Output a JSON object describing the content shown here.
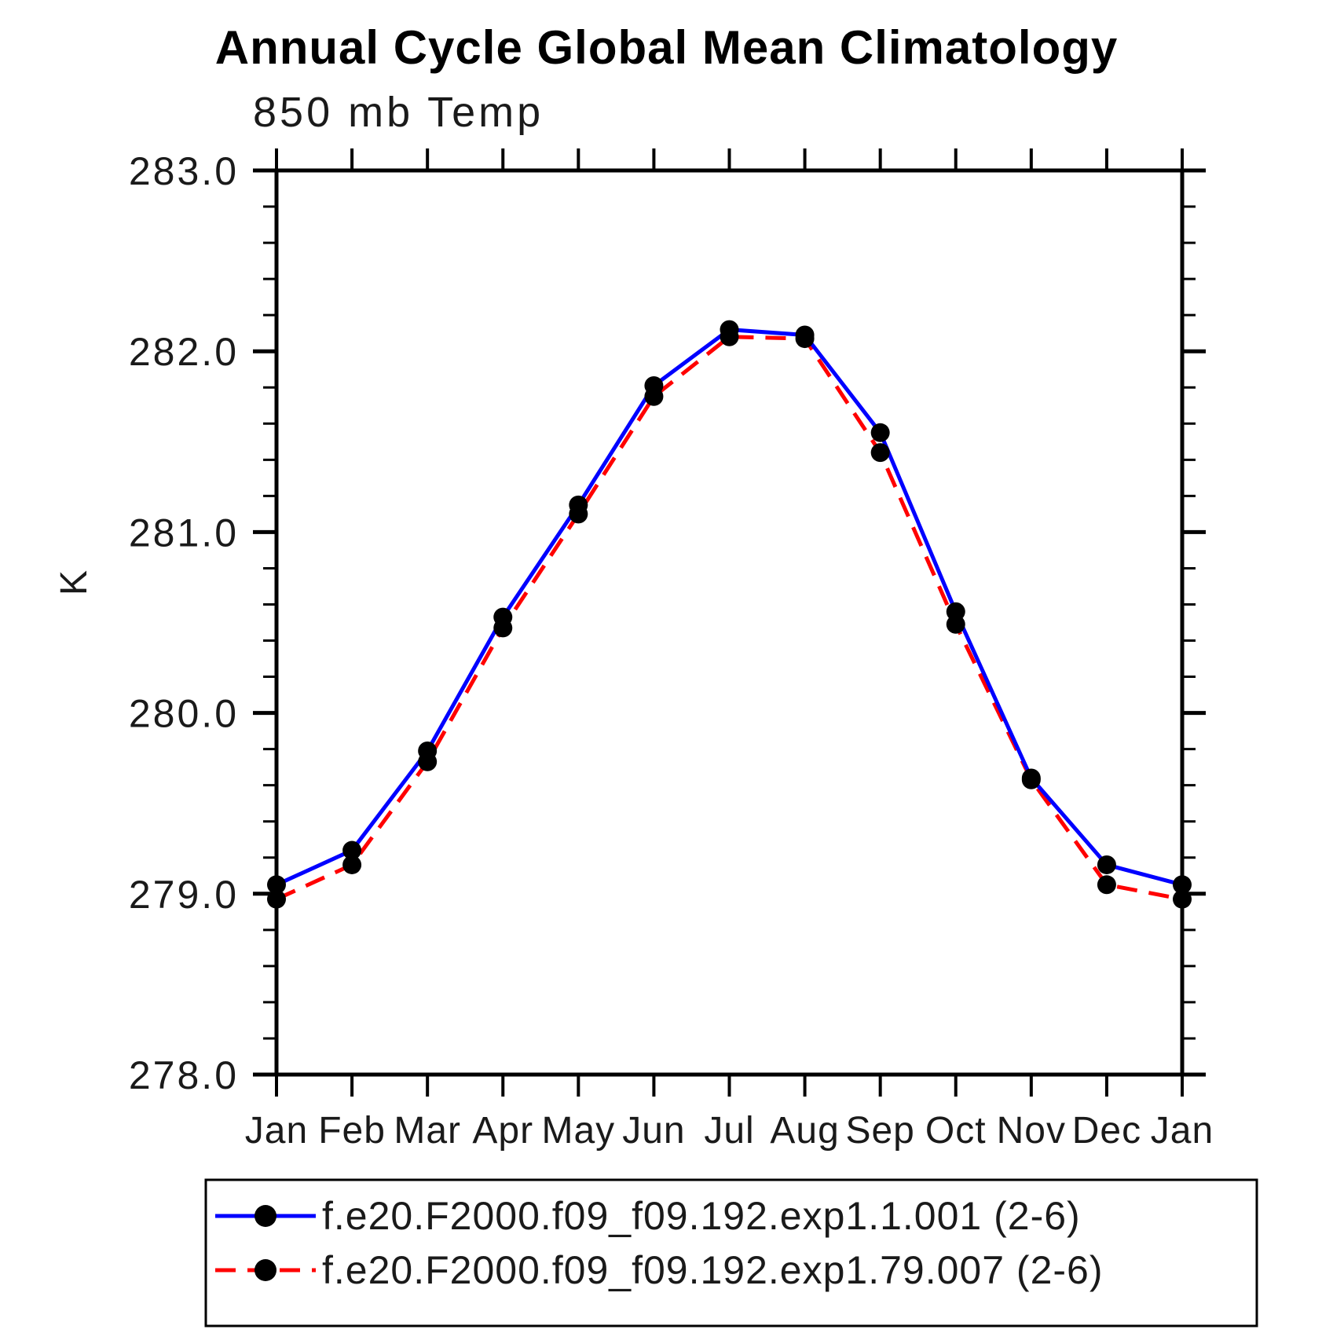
{
  "title": "Annual Cycle Global Mean Climatology",
  "subtitle": "850 mb Temp",
  "ylabel": "K",
  "colors": {
    "series1": "#0000ff",
    "series2": "#ff0000",
    "marker": "#000000",
    "axis": "#000000",
    "background": "#ffffff"
  },
  "legend": {
    "entries": [
      {
        "label": "f.e20.F2000.f09_f09.192.exp1.1.001 (2-6)",
        "color": "#0000ff",
        "style": "solid",
        "marker": "filled-circle"
      },
      {
        "label": "f.e20.F2000.f09_f09.192.exp1.79.007 (2-6)",
        "color": "#ff0000",
        "style": "dashed",
        "marker": "filled-circle"
      }
    ]
  },
  "chart_data": {
    "type": "line",
    "title": "Annual Cycle Global Mean Climatology",
    "subtitle": "850 mb Temp",
    "xlabel": "",
    "ylabel": "K",
    "categories": [
      "Jan",
      "Feb",
      "Mar",
      "Apr",
      "May",
      "Jun",
      "Jul",
      "Aug",
      "Sep",
      "Oct",
      "Nov",
      "Dec",
      "Jan"
    ],
    "series": [
      {
        "name": "f.e20.F2000.f09_f09.192.exp1.1.001 (2-6)",
        "color": "#0000ff",
        "line_style": "solid",
        "marker": "filled-circle",
        "marker_color": "#000000",
        "values": [
          279.05,
          279.24,
          279.79,
          280.53,
          281.15,
          281.81,
          282.12,
          282.09,
          281.55,
          280.56,
          279.64,
          279.16,
          279.05
        ]
      },
      {
        "name": "f.e20.F2000.f09_f09.192.exp1.79.007 (2-6)",
        "color": "#ff0000",
        "line_style": "dashed",
        "marker": "filled-circle",
        "marker_color": "#000000",
        "values": [
          278.97,
          279.16,
          279.73,
          280.47,
          281.1,
          281.75,
          282.08,
          282.07,
          281.44,
          280.49,
          279.63,
          279.05,
          278.97
        ]
      }
    ],
    "ylim": [
      278.0,
      283.0
    ],
    "ytick_major": 1.0,
    "ytick_minor": 0.2,
    "ytick_labels": [
      "278.0",
      "279.0",
      "280.0",
      "281.0",
      "282.0",
      "283.0"
    ],
    "grid": false,
    "tick_direction": "outward",
    "legend_position": "bottom"
  }
}
